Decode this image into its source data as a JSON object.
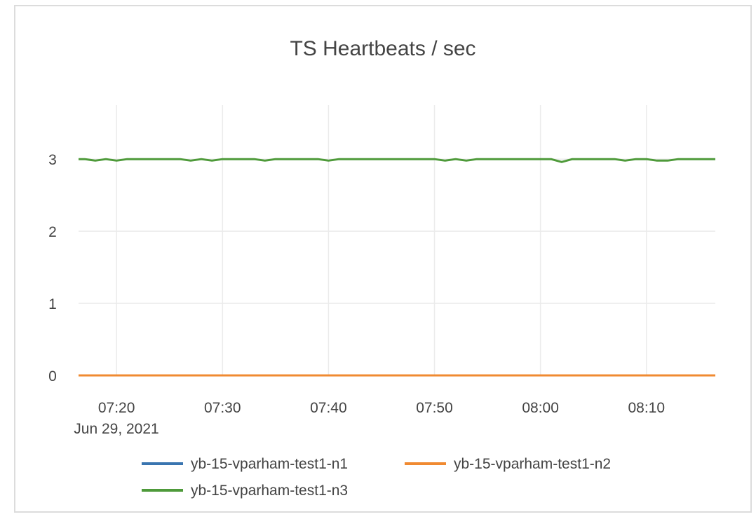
{
  "chart_data": {
    "type": "line",
    "title": "TS Heartbeats / sec",
    "xlabel": "",
    "ylabel": "",
    "date_label": "Jun 29, 2021",
    "xlim": [
      "07:16:25",
      "08:16:30"
    ],
    "ylim": [
      0,
      3.75
    ],
    "grid": true,
    "legend_position": "bottom",
    "x_ticks": [
      "07:20",
      "07:30",
      "07:40",
      "07:50",
      "08:00",
      "08:10"
    ],
    "y_ticks": [
      0,
      1,
      2,
      3
    ],
    "x": [
      "07:16",
      "07:17",
      "07:18",
      "07:19",
      "07:20",
      "07:21",
      "07:22",
      "07:23",
      "07:24",
      "07:25",
      "07:26",
      "07:27",
      "07:28",
      "07:29",
      "07:30",
      "07:31",
      "07:32",
      "07:33",
      "07:34",
      "07:35",
      "07:36",
      "07:37",
      "07:38",
      "07:39",
      "07:40",
      "07:41",
      "07:42",
      "07:43",
      "07:44",
      "07:45",
      "07:46",
      "07:47",
      "07:48",
      "07:49",
      "07:50",
      "07:51",
      "07:52",
      "07:53",
      "07:54",
      "07:55",
      "07:56",
      "07:57",
      "07:58",
      "07:59",
      "08:00",
      "08:01",
      "08:02",
      "08:03",
      "08:04",
      "08:05",
      "08:06",
      "08:07",
      "08:08",
      "08:09",
      "08:10",
      "08:11",
      "08:12",
      "08:13",
      "08:14",
      "08:15",
      "08:16",
      "08:17"
    ],
    "series": [
      {
        "name": "yb-15-vparham-test1-n1",
        "color": "#3a75b0",
        "values": [
          0,
          0,
          0,
          0,
          0,
          0,
          0,
          0,
          0,
          0,
          0,
          0,
          0,
          0,
          0,
          0,
          0,
          0,
          0,
          0,
          0,
          0,
          0,
          0,
          0,
          0,
          0,
          0,
          0,
          0,
          0,
          0,
          0,
          0,
          0,
          0,
          0,
          0,
          0,
          0,
          0,
          0,
          0,
          0,
          0,
          0,
          0,
          0,
          0,
          0,
          0,
          0,
          0,
          0,
          0,
          0,
          0,
          0,
          0,
          0,
          0,
          0
        ]
      },
      {
        "name": "yb-15-vparham-test1-n2",
        "color": "#f08a31",
        "values": [
          0,
          0,
          0,
          0,
          0,
          0,
          0,
          0,
          0,
          0,
          0,
          0,
          0,
          0,
          0,
          0,
          0,
          0,
          0,
          0,
          0,
          0,
          0,
          0,
          0,
          0,
          0,
          0,
          0,
          0,
          0,
          0,
          0,
          0,
          0,
          0,
          0,
          0,
          0,
          0,
          0,
          0,
          0,
          0,
          0,
          0,
          0,
          0,
          0,
          0,
          0,
          0,
          0,
          0,
          0,
          0,
          0,
          0,
          0,
          0,
          0,
          0
        ]
      },
      {
        "name": "yb-15-vparham-test1-n3",
        "color": "#4e9a3a",
        "values": [
          3,
          3,
          2.98,
          3,
          2.98,
          3,
          3,
          3,
          3,
          3,
          3,
          2.98,
          3,
          2.98,
          3,
          3,
          3,
          3,
          2.98,
          3,
          3,
          3,
          3,
          3,
          2.98,
          3,
          3,
          3,
          3,
          3,
          3,
          3,
          3,
          3,
          3,
          2.98,
          3,
          2.98,
          3,
          3,
          3,
          3,
          3,
          3,
          3,
          3,
          2.96,
          3,
          3,
          3,
          3,
          3,
          2.98,
          3,
          3,
          2.98,
          2.98,
          3,
          3,
          3,
          3,
          3
        ]
      }
    ]
  }
}
